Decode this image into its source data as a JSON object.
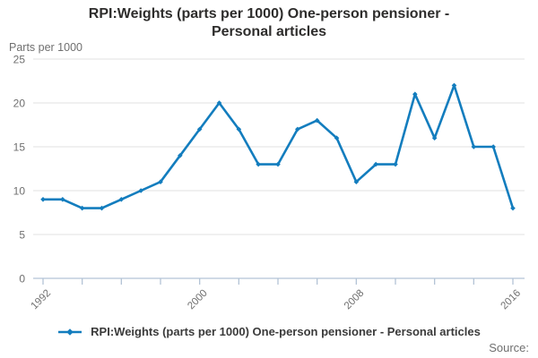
{
  "accent_color": "#137dbe",
  "grid_color": "#e1e1e1",
  "axis_color": "#b3c3d6",
  "tick_label_color": "#6f6f6f",
  "title": {
    "line1": "RPI:Weights (parts per 1000) One-person pensioner -",
    "line2": "Personal articles"
  },
  "units_label": "Parts per 1000",
  "legend": {
    "label": "RPI:Weights (parts per 1000) One-person pensioner - Personal articles"
  },
  "source_label": "Source:",
  "chart_data": {
    "type": "line",
    "title": "RPI:Weights (parts per 1000) One-person pensioner - Personal articles",
    "ylabel": "Parts per 1000",
    "xlabel": "",
    "x_range": [
      1992,
      2016
    ],
    "ylim": [
      0,
      25
    ],
    "yticks": [
      0,
      5,
      10,
      15,
      20,
      25
    ],
    "xticks_minor_step": 2,
    "xticks_labeled": [
      "1992",
      "2000",
      "2008",
      "2016"
    ],
    "grid": "horizontal",
    "legend_position": "bottom",
    "marker": "diamond",
    "series": [
      {
        "name": "RPI:Weights (parts per 1000) One-person pensioner - Personal articles",
        "x": [
          1992,
          1993,
          1994,
          1995,
          1996,
          1997,
          1998,
          1999,
          2000,
          2001,
          2002,
          2003,
          2004,
          2005,
          2006,
          2007,
          2008,
          2009,
          2010,
          2011,
          2012,
          2013,
          2014,
          2015,
          2016
        ],
        "values": [
          9,
          9,
          8,
          8,
          9,
          10,
          11,
          14,
          17,
          20,
          17,
          13,
          13,
          17,
          18,
          16,
          11,
          13,
          13,
          21,
          16,
          22,
          15,
          15,
          8
        ]
      }
    ]
  }
}
